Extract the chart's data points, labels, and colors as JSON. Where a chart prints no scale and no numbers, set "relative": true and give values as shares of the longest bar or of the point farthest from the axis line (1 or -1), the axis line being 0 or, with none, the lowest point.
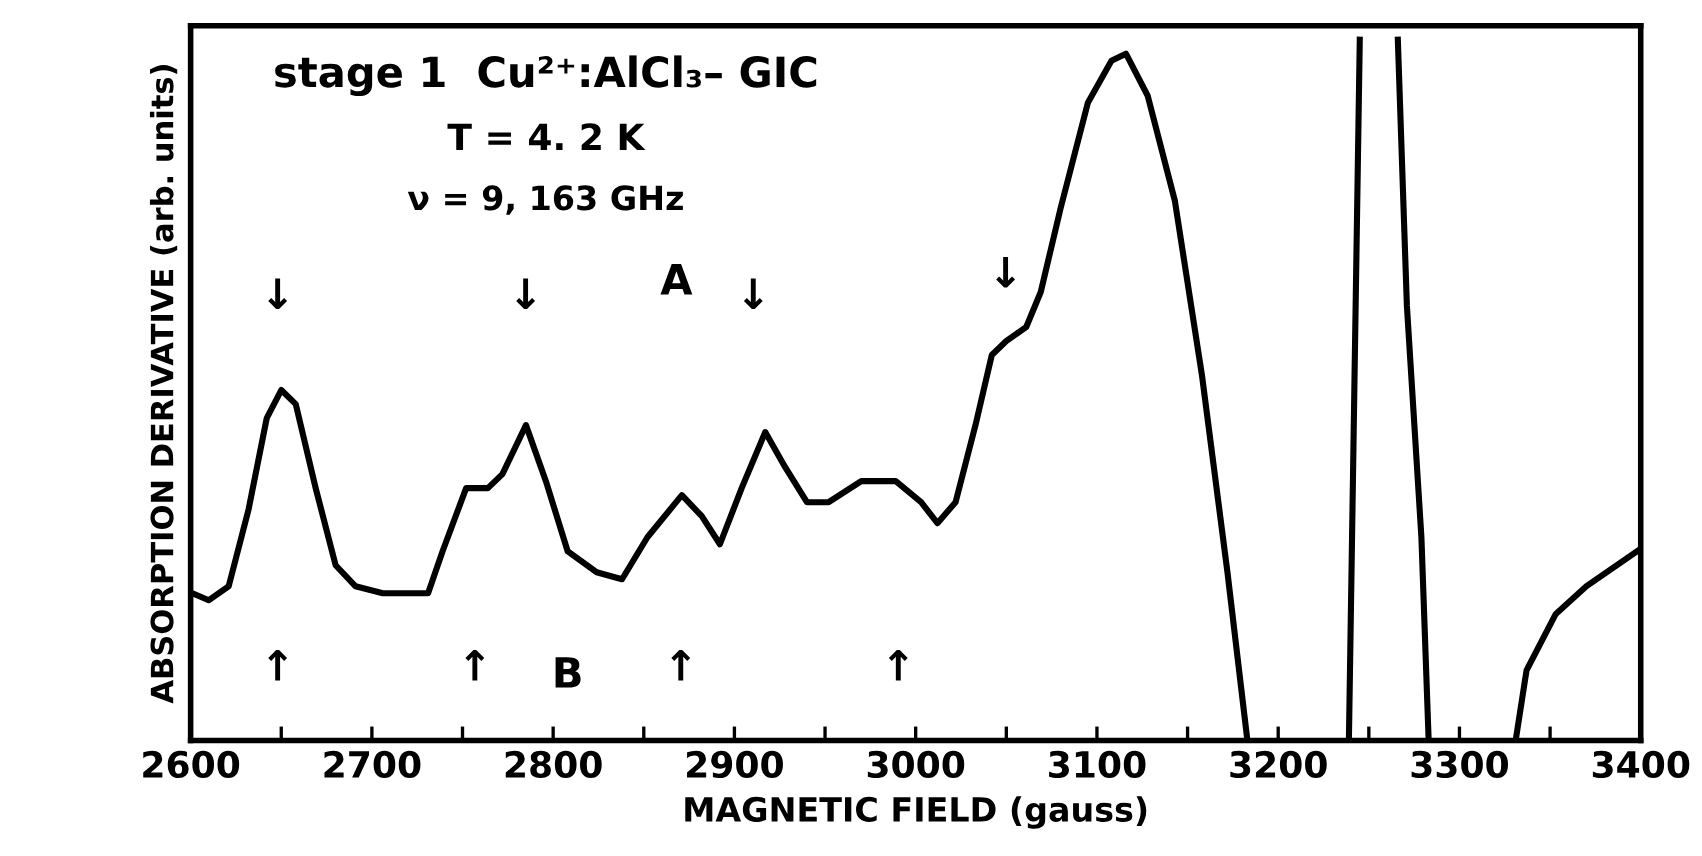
{
  "chart_data": {
    "type": "line",
    "relative": true,
    "title": "stage 1  Cu²⁺:AlCl₃– GIC",
    "subtitle": "T = 4. 2 K",
    "xlabel": "MAGNETIC FIELD (gauss)",
    "ylabel": "ABSORPTION DERIVATIVE (arb. units)",
    "xlim": [
      2600,
      3400
    ],
    "xticks": [
      2600,
      {
        "value": 2650,
        "label": null
      },
      2700,
      {
        "value": 2750,
        "label": null
      },
      2800,
      {
        "value": 2850,
        "label": null
      },
      2900,
      {
        "value": 2950,
        "label": null
      },
      3000,
      {
        "value": 3050,
        "label": null
      },
      3100,
      {
        "value": 3150,
        "label": null
      },
      3200,
      {
        "value": 3250,
        "label": null
      },
      3300,
      {
        "value": 3350,
        "label": null
      },
      3400
    ],
    "tick_labels": "x",
    "grid": false,
    "legend": false,
    "marker": "none",
    "line_style": "solid",
    "series": [
      {
        "color": "#000000",
        "x": [
          2601,
          2610,
          2621,
          2632,
          2642,
          2650,
          2658,
          2669,
          2680,
          2691,
          2706,
          2731,
          2739,
          2752,
          2764,
          2772,
          2785,
          2796,
          2808,
          2824,
          2838,
          2852,
          2871,
          2882,
          2892,
          2904,
          2917,
          2928,
          2940,
          2952,
          2970,
          2989,
          3003,
          3012,
          3022,
          3033,
          3042,
          3050,
          3061,
          3069,
          3080,
          3095,
          3108,
          3116,
          3128,
          3143,
          3158,
          3172,
          3183,
          3210,
          3239,
          3242,
          3245,
          3255,
          3266,
          3271,
          3279,
          3283,
          3305,
          3331,
          3337,
          3353,
          3370,
          3398
        ],
        "values": [
          0.21,
          0.2,
          0.22,
          0.33,
          0.46,
          0.5,
          0.48,
          0.36,
          0.25,
          0.22,
          0.21,
          0.21,
          0.27,
          0.36,
          0.36,
          0.38,
          0.45,
          0.37,
          0.27,
          0.24,
          0.23,
          0.29,
          0.35,
          0.32,
          0.28,
          0.36,
          0.44,
          0.39,
          0.34,
          0.34,
          0.37,
          0.37,
          0.34,
          0.31,
          0.34,
          0.45,
          0.55,
          0.57,
          0.59,
          0.64,
          0.76,
          0.91,
          0.97,
          0.98,
          0.92,
          0.77,
          0.52,
          0.24,
          0,
          null,
          0,
          0.5,
          1,
          null,
          1,
          0.62,
          0.29,
          0,
          null,
          0,
          0.1,
          0.18,
          0.22,
          0.27
        ]
      }
    ],
    "annotations": [
      "ν = 9, 163 GHz",
      "A",
      "B",
      "↓",
      "↓",
      "↓",
      "↓",
      "↑",
      "↑",
      "↑",
      "↑"
    ]
  }
}
